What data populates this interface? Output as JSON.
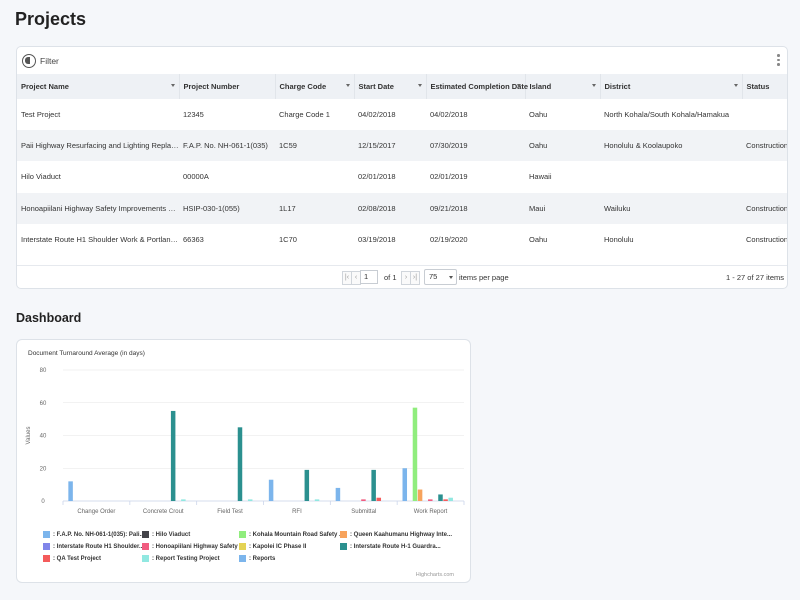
{
  "page_title": "Projects",
  "toolbar": {
    "filter_label": "Filter"
  },
  "columns": [
    {
      "label": "Project Name",
      "sortable": true
    },
    {
      "label": "Project Number",
      "sortable": false
    },
    {
      "label": "Charge Code",
      "sortable": true
    },
    {
      "label": "Start Date",
      "sortable": true
    },
    {
      "label": "Estimated Completion Date",
      "sortable": true
    },
    {
      "label": "Island",
      "sortable": true
    },
    {
      "label": "District",
      "sortable": true
    },
    {
      "label": "Status",
      "sortable": false
    }
  ],
  "rows": [
    [
      "Test Project",
      "12345",
      "Charge Code 1",
      "04/02/2018",
      "04/02/2018",
      "Oahu",
      "North Kohala/South Kohala/Hamakua",
      ""
    ],
    [
      "Paii Highway Resurfacing and Lighting Replacement",
      "F.A.P. No. NH-061-1(035)",
      "1C59",
      "12/15/2017",
      "07/30/2019",
      "Oahu",
      "Honolulu & Koolaupoko",
      "Construction"
    ],
    [
      "Hilo Viaduct",
      "00000A",
      "",
      "02/01/2018",
      "02/01/2019",
      "Hawaii",
      "",
      ""
    ],
    [
      "Honoapiilani Highway Safety Improvements Ukum...",
      "HSIP-030-1(055)",
      "1L17",
      "02/08/2018",
      "09/21/2018",
      "Maui",
      "Wailuku",
      "Construction"
    ],
    [
      "Interstate Route H1 Shoulder Work & Portland Ce...",
      "66363",
      "1C70",
      "03/19/2018",
      "02/19/2020",
      "Oahu",
      "Honolulu",
      "Construction"
    ]
  ],
  "pager": {
    "first_icon": "first-page-icon",
    "prev_icon": "prev-page-icon",
    "next_icon": "next-page-icon",
    "last_icon": "last-page-icon",
    "page": "1",
    "of_text": "of 1",
    "per_page": "75",
    "per_page_label": "items per page",
    "range_text": "1 - 27 of 27 items"
  },
  "dashboard": {
    "title": "Dashboard",
    "credits": "Highcharts.com"
  },
  "chart_data": {
    "type": "bar",
    "title": "Document Turnaround Average (in days)",
    "xlabel": "",
    "ylabel": "Values",
    "ylim": [
      0,
      80
    ],
    "yticks": [
      "0",
      "20",
      "40",
      "60",
      "80"
    ],
    "grid": true,
    "legend_position": "bottom",
    "categories": [
      "Change Order",
      "Concrete Crout",
      "Field Test",
      "RFI",
      "Submittal",
      "Work Report"
    ],
    "series": [
      {
        "name": ": F.A.P. No. NH-061-1(035): Pali...",
        "color": "#7cb5ec",
        "values": [
          12,
          0,
          0,
          13,
          8,
          20
        ]
      },
      {
        "name": ": Hilo Viaduct",
        "color": "#434348",
        "values": [
          0,
          0,
          0,
          0,
          0,
          0
        ]
      },
      {
        "name": ": Kohala Mountain Road Safety ...",
        "color": "#90ed7d",
        "values": [
          0,
          0,
          0,
          0,
          0,
          57
        ]
      },
      {
        "name": ": Queen Kaahumanu Highway Inte...",
        "color": "#f7a35c",
        "values": [
          0,
          0,
          0,
          0,
          0,
          7
        ]
      },
      {
        "name": ": Interstate Route H1 Shoulder...",
        "color": "#8085e9",
        "values": [
          0,
          0,
          0,
          0,
          0,
          0
        ]
      },
      {
        "name": ": Honoapiilani Highway Safety ...",
        "color": "#f15c80",
        "values": [
          0,
          0,
          0,
          0,
          1,
          1
        ]
      },
      {
        "name": ": Kapolei IC Phase II",
        "color": "#e4d354",
        "values": [
          0,
          0,
          0,
          0,
          0,
          0
        ]
      },
      {
        "name": ": Interstate Route H-1 Guardra...",
        "color": "#2b908f",
        "values": [
          0,
          55,
          45,
          19,
          19,
          4
        ]
      },
      {
        "name": ": QA Test Project",
        "color": "#f45b5b",
        "values": [
          0,
          0,
          0,
          0,
          2,
          1
        ]
      },
      {
        "name": ": Report Testing Project",
        "color": "#91e8e1",
        "values": [
          0,
          1,
          1,
          1,
          0,
          2
        ]
      },
      {
        "name": ": Reports",
        "color": "#7cb5ec",
        "values": [
          0,
          0,
          0,
          0,
          0,
          0
        ]
      }
    ]
  }
}
